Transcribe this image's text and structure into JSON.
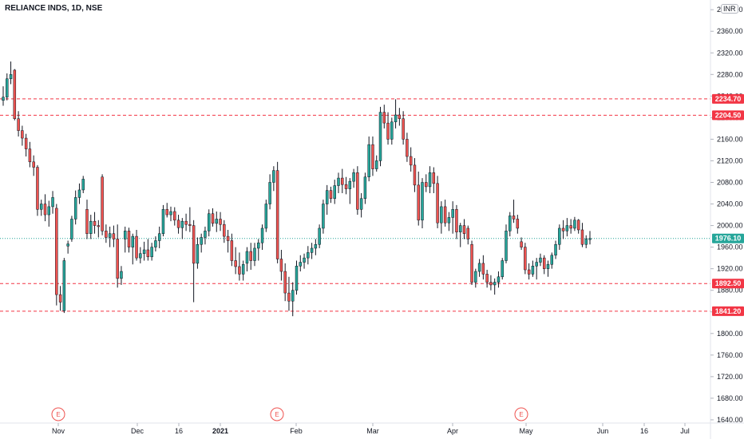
{
  "header": {
    "symbol": "RELIANCE INDS, 1D, NSE",
    "currency": "INR"
  },
  "chart_data": {
    "type": "candlestick",
    "title": "RELIANCE INDS, 1D, NSE",
    "ylim": [
      1634,
      2418
    ],
    "y_ticks": [
      "2400.00",
      "2360.00",
      "2320.00",
      "2280.00",
      "2240.00",
      "2200.00",
      "2160.00",
      "2120.00",
      "2080.00",
      "2040.00",
      "2000.00",
      "1960.00",
      "1920.00",
      "1880.00",
      "1840.00",
      "1800.00",
      "1760.00",
      "1720.00",
      "1680.00",
      "1640.00"
    ],
    "x_ticks": [
      "Nov",
      "Dec",
      "16",
      "2021",
      "Feb",
      "Mar",
      "Apr",
      "May",
      "Jun",
      "16",
      "Jul"
    ],
    "earnings_markers": [
      "E",
      "E",
      "E"
    ],
    "last_price": "1976.10",
    "horizontal_lines": [
      {
        "label": "2234.70",
        "value": 2234.7,
        "color": "#f23645"
      },
      {
        "label": "2204.50",
        "value": 2204.5,
        "color": "#f23645"
      },
      {
        "label": "1892.50",
        "value": 1892.5,
        "color": "#f23645"
      },
      {
        "label": "1841.20",
        "value": 1841.2,
        "color": "#f23645"
      }
    ],
    "colors": {
      "up": "#26a69a",
      "down": "#ef5350",
      "wick": "#131722",
      "last_price": "#26a69a"
    },
    "candles": [
      [
        2232,
        2258,
        2222,
        2238
      ],
      [
        2238,
        2282,
        2232,
        2272
      ],
      [
        2272,
        2304,
        2262,
        2280
      ],
      [
        2288,
        2290,
        2195,
        2198
      ],
      [
        2198,
        2212,
        2165,
        2176
      ],
      [
        2176,
        2185,
        2148,
        2162
      ],
      [
        2162,
        2170,
        2128,
        2142
      ],
      [
        2142,
        2155,
        2108,
        2118
      ],
      [
        2118,
        2130,
        2092,
        2108
      ],
      [
        2108,
        2112,
        2018,
        2030
      ],
      [
        2030,
        2048,
        2018,
        2040
      ],
      [
        2040,
        2058,
        2008,
        2020
      ],
      [
        2020,
        2046,
        1998,
        2035
      ],
      [
        2035,
        2064,
        2022,
        2052
      ],
      [
        2032,
        2040,
        1852,
        1872
      ],
      [
        1872,
        1888,
        1842,
        1858
      ],
      [
        1842,
        1940,
        1838,
        1935
      ],
      [
        1962,
        1972,
        1948,
        1966
      ],
      [
        1975,
        2018,
        1970,
        2012
      ],
      [
        2012,
        2065,
        2002,
        2052
      ],
      [
        2052,
        2078,
        2040,
        2066
      ],
      [
        2066,
        2092,
        2060,
        2086
      ],
      [
        2030,
        2048,
        1975,
        1985
      ],
      [
        1985,
        2020,
        1975,
        2008
      ],
      [
        2008,
        2025,
        1985,
        2000
      ],
      [
        2000,
        2010,
        1978,
        1998
      ],
      [
        2090,
        2095,
        1982,
        1990
      ],
      [
        1990,
        2002,
        1968,
        1978
      ],
      [
        1978,
        1998,
        1960,
        1985
      ],
      [
        1985,
        2000,
        1960,
        1975
      ],
      [
        1975,
        2002,
        1885,
        1902
      ],
      [
        1902,
        1925,
        1890,
        1915
      ],
      [
        1975,
        1998,
        1950,
        1990
      ],
      [
        1990,
        1996,
        1950,
        1960
      ],
      [
        1960,
        1985,
        1928,
        1980
      ],
      [
        1980,
        1992,
        1935,
        1940
      ],
      [
        1940,
        1960,
        1930,
        1948
      ],
      [
        1948,
        1970,
        1935,
        1955
      ],
      [
        1955,
        1975,
        1935,
        1942
      ],
      [
        1942,
        1968,
        1935,
        1960
      ],
      [
        1960,
        1980,
        1952,
        1972
      ],
      [
        1972,
        1998,
        1958,
        1985
      ],
      [
        1985,
        2038,
        1980,
        2030
      ],
      [
        2030,
        2042,
        2015,
        2020
      ],
      [
        2020,
        2035,
        2008,
        2026
      ],
      [
        2026,
        2034,
        2000,
        2010
      ],
      [
        2010,
        2020,
        1985,
        1996
      ],
      [
        1996,
        2014,
        1975,
        2008
      ],
      [
        2008,
        2022,
        1990,
        2002
      ],
      [
        2002,
        2034,
        1988,
        2000
      ],
      [
        2000,
        2010,
        1858,
        1930
      ],
      [
        1930,
        1978,
        1920,
        1965
      ],
      [
        1965,
        1985,
        1950,
        1978
      ],
      [
        1978,
        1998,
        1965,
        1990
      ],
      [
        1990,
        2030,
        1980,
        2022
      ],
      [
        2022,
        2032,
        1998,
        2004
      ],
      [
        2004,
        2026,
        1988,
        2012
      ],
      [
        2012,
        2025,
        1990,
        2002
      ],
      [
        2002,
        2010,
        1968,
        1980
      ],
      [
        1980,
        1992,
        1950,
        1972
      ],
      [
        1972,
        1985,
        1925,
        1935
      ],
      [
        1935,
        1960,
        1910,
        1924
      ],
      [
        1924,
        1950,
        1898,
        1910
      ],
      [
        1910,
        1935,
        1898,
        1928
      ],
      [
        1930,
        1960,
        1915,
        1952
      ],
      [
        1952,
        1968,
        1918,
        1935
      ],
      [
        1935,
        1968,
        1925,
        1958
      ],
      [
        1958,
        1975,
        1935,
        1968
      ],
      [
        1968,
        2002,
        1955,
        1995
      ],
      [
        1995,
        2048,
        1988,
        2040
      ],
      [
        2040,
        2095,
        2030,
        2080
      ],
      [
        2080,
        2110,
        2064,
        2102
      ],
      [
        2102,
        2118,
        1930,
        1938
      ],
      [
        1938,
        1955,
        1898,
        1915
      ],
      [
        1915,
        1930,
        1860,
        1875
      ],
      [
        1875,
        1905,
        1842,
        1860
      ],
      [
        1860,
        1895,
        1832,
        1880
      ],
      [
        1880,
        1935,
        1872,
        1925
      ],
      [
        1925,
        1945,
        1915,
        1932
      ],
      [
        1932,
        1948,
        1920,
        1940
      ],
      [
        1940,
        1962,
        1928,
        1950
      ],
      [
        1950,
        1968,
        1938,
        1958
      ],
      [
        1958,
        1975,
        1945,
        1965
      ],
      [
        1965,
        2002,
        1958,
        1995
      ],
      [
        1995,
        2048,
        1985,
        2040
      ],
      [
        2040,
        2075,
        2020,
        2065
      ],
      [
        2065,
        2072,
        2042,
        2050
      ],
      [
        2050,
        2085,
        2040,
        2074
      ],
      [
        2074,
        2098,
        2060,
        2088
      ],
      [
        2088,
        2105,
        2060,
        2076
      ],
      [
        2076,
        2090,
        2058,
        2068
      ],
      [
        2068,
        2088,
        2040,
        2082
      ],
      [
        2082,
        2105,
        2070,
        2098
      ],
      [
        2098,
        2110,
        2020,
        2030
      ],
      [
        2030,
        2060,
        2015,
        2050
      ],
      [
        2050,
        2098,
        2040,
        2090
      ],
      [
        2090,
        2165,
        2082,
        2150
      ],
      [
        2150,
        2165,
        2092,
        2105
      ],
      [
        2105,
        2130,
        2100,
        2120
      ],
      [
        2120,
        2220,
        2110,
        2210
      ],
      [
        2210,
        2224,
        2180,
        2190
      ],
      [
        2190,
        2210,
        2150,
        2160
      ],
      [
        2160,
        2200,
        2150,
        2192
      ],
      [
        2192,
        2234,
        2180,
        2205
      ],
      [
        2205,
        2218,
        2185,
        2198
      ],
      [
        2198,
        2212,
        2150,
        2160
      ],
      [
        2160,
        2172,
        2118,
        2128
      ],
      [
        2128,
        2145,
        2100,
        2112
      ],
      [
        2112,
        2125,
        2062,
        2075
      ],
      [
        2075,
        2100,
        2000,
        2010
      ],
      [
        2010,
        2088,
        1995,
        2080
      ],
      [
        2080,
        2095,
        2062,
        2072
      ],
      [
        2072,
        2110,
        2060,
        2098
      ],
      [
        2098,
        2108,
        2060,
        2078
      ],
      [
        2078,
        2092,
        1995,
        2005
      ],
      [
        2005,
        2045,
        1985,
        2035
      ],
      [
        2035,
        2048,
        1998,
        2005
      ],
      [
        2005,
        2025,
        1990,
        2015
      ],
      [
        2015,
        2045,
        1985,
        2030
      ],
      [
        2030,
        2038,
        1975,
        1988
      ],
      [
        1988,
        2005,
        1960,
        2000
      ],
      [
        2000,
        2012,
        1975,
        1985
      ],
      [
        1995,
        2000,
        1965,
        1975
      ],
      [
        1965,
        1972,
        1890,
        1895
      ],
      [
        1895,
        1920,
        1885,
        1915
      ],
      [
        1915,
        1938,
        1905,
        1930
      ],
      [
        1930,
        1945,
        1900,
        1910
      ],
      [
        1910,
        1918,
        1885,
        1895
      ],
      [
        1895,
        1908,
        1880,
        1890
      ],
      [
        1890,
        1902,
        1872,
        1895
      ],
      [
        1895,
        1915,
        1885,
        1905
      ],
      [
        1905,
        1940,
        1900,
        1935
      ],
      [
        1935,
        2002,
        1930,
        1990
      ],
      [
        1990,
        2025,
        1980,
        2018
      ],
      [
        2018,
        2048,
        2005,
        2012
      ],
      [
        2012,
        2020,
        1985,
        1995
      ],
      [
        1970,
        1978,
        1955,
        1960
      ],
      [
        1960,
        1968,
        1910,
        1918
      ],
      [
        1918,
        1930,
        1900,
        1910
      ],
      [
        1910,
        1935,
        1905,
        1925
      ],
      [
        1925,
        1940,
        1900,
        1932
      ],
      [
        1932,
        1948,
        1925,
        1940
      ],
      [
        1940,
        1945,
        1910,
        1920
      ],
      [
        1920,
        1935,
        1905,
        1928
      ],
      [
        1928,
        1950,
        1920,
        1945
      ],
      [
        1945,
        1972,
        1938,
        1965
      ],
      [
        1965,
        2002,
        1955,
        1995
      ],
      [
        1995,
        2010,
        1975,
        1990
      ],
      [
        1990,
        2014,
        1980,
        2000
      ],
      [
        2000,
        2012,
        1985,
        1995
      ],
      [
        1995,
        2016,
        1990,
        2010
      ],
      [
        2010,
        2012,
        1985,
        1992
      ],
      [
        1992,
        2005,
        1960,
        1965
      ],
      [
        1965,
        1982,
        1958,
        1975
      ],
      [
        1974,
        1990,
        1965,
        1976
      ]
    ]
  }
}
